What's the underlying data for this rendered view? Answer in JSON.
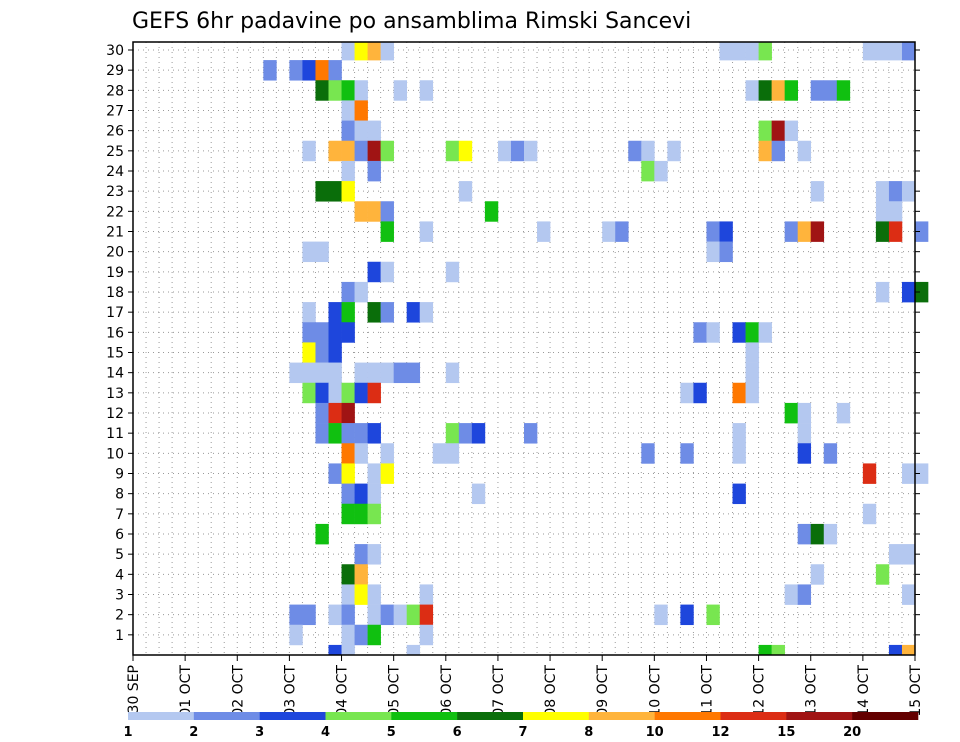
{
  "chart_data": {
    "type": "heatmap",
    "title": "GEFS 6hr padavine po ansamblima Rimski Sancevi",
    "ylabel": "",
    "xlabel": "",
    "x_tick_labels": [
      "30 SEP",
      "01 OCT",
      "02 OCT",
      "03 OCT",
      "04 OCT",
      "05 OCT",
      "06 OCT",
      "07 OCT",
      "08 OCT",
      "09 OCT",
      "10 OCT",
      "11 OCT",
      "12 OCT",
      "13 OCT",
      "14 OCT",
      "15 OCT"
    ],
    "y_tick_labels": [
      "1",
      "2",
      "3",
      "4",
      "5",
      "6",
      "7",
      "8",
      "9",
      "10",
      "11",
      "12",
      "13",
      "14",
      "15",
      "16",
      "17",
      "18",
      "19",
      "20",
      "21",
      "22",
      "23",
      "24",
      "25",
      "26",
      "27",
      "28",
      "29",
      "30"
    ],
    "xlim_days": [
      0,
      15
    ],
    "ylim": [
      0,
      30
    ],
    "grid": true,
    "legend": {
      "placement": "bottom",
      "levels": [
        "1",
        "2",
        "3",
        "4",
        "5",
        "6",
        "7",
        "8",
        "10",
        "12",
        "15",
        "20"
      ],
      "colors": [
        "#b4c8f0",
        "#6e8ce6",
        "#1e46dc",
        "#78e650",
        "#10c010",
        "#0a6e0a",
        "#ffff00",
        "#ffb43c",
        "#ff7800",
        "#dc2d14",
        "#a01414",
        "#640000"
      ]
    },
    "cells": [
      [
        30,
        16,
        0
      ],
      [
        30,
        17,
        6
      ],
      [
        30,
        18,
        7
      ],
      [
        30,
        19,
        0
      ],
      [
        30,
        45,
        0
      ],
      [
        30,
        46,
        0
      ],
      [
        30,
        47,
        0
      ],
      [
        30,
        48,
        3
      ],
      [
        30,
        56,
        0
      ],
      [
        30,
        57,
        0
      ],
      [
        30,
        58,
        0
      ],
      [
        30,
        59,
        1
      ],
      [
        29,
        10,
        1
      ],
      [
        29,
        12,
        1
      ],
      [
        29,
        13,
        2
      ],
      [
        29,
        14,
        8
      ],
      [
        29,
        15,
        1
      ],
      [
        28,
        14,
        5
      ],
      [
        28,
        15,
        3
      ],
      [
        28,
        16,
        4
      ],
      [
        28,
        17,
        0
      ],
      [
        28,
        20,
        0
      ],
      [
        28,
        22,
        0
      ],
      [
        28,
        47,
        0
      ],
      [
        28,
        48,
        5
      ],
      [
        28,
        49,
        7
      ],
      [
        28,
        50,
        4
      ],
      [
        28,
        52,
        1
      ],
      [
        28,
        53,
        1
      ],
      [
        28,
        54,
        4
      ],
      [
        27,
        16,
        0
      ],
      [
        27,
        17,
        8
      ],
      [
        26,
        16,
        1
      ],
      [
        26,
        17,
        0
      ],
      [
        26,
        18,
        0
      ],
      [
        26,
        48,
        3
      ],
      [
        26,
        49,
        10
      ],
      [
        26,
        50,
        0
      ],
      [
        25,
        13,
        0
      ],
      [
        25,
        15,
        7
      ],
      [
        25,
        16,
        7
      ],
      [
        25,
        17,
        1
      ],
      [
        25,
        18,
        10
      ],
      [
        25,
        19,
        3
      ],
      [
        25,
        24,
        3
      ],
      [
        25,
        25,
        6
      ],
      [
        25,
        28,
        0
      ],
      [
        25,
        29,
        1
      ],
      [
        25,
        30,
        0
      ],
      [
        25,
        38,
        1
      ],
      [
        25,
        39,
        0
      ],
      [
        25,
        41,
        0
      ],
      [
        25,
        48,
        7
      ],
      [
        25,
        49,
        1
      ],
      [
        25,
        51,
        0
      ],
      [
        24,
        16,
        0
      ],
      [
        24,
        18,
        1
      ],
      [
        24,
        39,
        3
      ],
      [
        24,
        40,
        0
      ],
      [
        23,
        14,
        5
      ],
      [
        23,
        15,
        5
      ],
      [
        23,
        16,
        6
      ],
      [
        23,
        25,
        0
      ],
      [
        23,
        52,
        0
      ],
      [
        23,
        57,
        0
      ],
      [
        23,
        58,
        1
      ],
      [
        23,
        59,
        0
      ],
      [
        22,
        17,
        7
      ],
      [
        22,
        18,
        7
      ],
      [
        22,
        19,
        1
      ],
      [
        22,
        27,
        4
      ],
      [
        22,
        57,
        0
      ],
      [
        22,
        58,
        0
      ],
      [
        21,
        19,
        4
      ],
      [
        21,
        22,
        0
      ],
      [
        21,
        31,
        0
      ],
      [
        21,
        36,
        0
      ],
      [
        21,
        37,
        1
      ],
      [
        21,
        44,
        1
      ],
      [
        21,
        45,
        2
      ],
      [
        21,
        50,
        1
      ],
      [
        21,
        51,
        7
      ],
      [
        21,
        52,
        10
      ],
      [
        21,
        57,
        5
      ],
      [
        21,
        58,
        9
      ],
      [
        21,
        60,
        1
      ],
      [
        20,
        13,
        0
      ],
      [
        20,
        14,
        0
      ],
      [
        20,
        44,
        0
      ],
      [
        20,
        45,
        1
      ],
      [
        19,
        18,
        2
      ],
      [
        19,
        19,
        0
      ],
      [
        19,
        24,
        0
      ],
      [
        18,
        16,
        1
      ],
      [
        18,
        17,
        0
      ],
      [
        18,
        57,
        0
      ],
      [
        18,
        59,
        2
      ],
      [
        18,
        60,
        5
      ],
      [
        17,
        13,
        0
      ],
      [
        17,
        15,
        2
      ],
      [
        17,
        16,
        4
      ],
      [
        17,
        18,
        5
      ],
      [
        17,
        19,
        1
      ],
      [
        17,
        21,
        2
      ],
      [
        17,
        22,
        0
      ],
      [
        16,
        13,
        1
      ],
      [
        16,
        14,
        1
      ],
      [
        16,
        15,
        2
      ],
      [
        16,
        16,
        2
      ],
      [
        16,
        43,
        1
      ],
      [
        16,
        44,
        0
      ],
      [
        16,
        46,
        2
      ],
      [
        16,
        47,
        4
      ],
      [
        16,
        48,
        0
      ],
      [
        15,
        13,
        6
      ],
      [
        15,
        14,
        1
      ],
      [
        15,
        15,
        2
      ],
      [
        15,
        47,
        0
      ],
      [
        14,
        12,
        0
      ],
      [
        14,
        13,
        0
      ],
      [
        14,
        14,
        0
      ],
      [
        14,
        15,
        0
      ],
      [
        14,
        17,
        0
      ],
      [
        14,
        18,
        0
      ],
      [
        14,
        19,
        0
      ],
      [
        14,
        20,
        1
      ],
      [
        14,
        21,
        1
      ],
      [
        14,
        24,
        0
      ],
      [
        14,
        47,
        0
      ],
      [
        13,
        13,
        3
      ],
      [
        13,
        14,
        2
      ],
      [
        13,
        15,
        0
      ],
      [
        13,
        16,
        3
      ],
      [
        13,
        17,
        2
      ],
      [
        13,
        18,
        9
      ],
      [
        13,
        42,
        0
      ],
      [
        13,
        43,
        2
      ],
      [
        13,
        46,
        8
      ],
      [
        13,
        47,
        0
      ],
      [
        12,
        14,
        1
      ],
      [
        12,
        15,
        9
      ],
      [
        12,
        16,
        10
      ],
      [
        12,
        50,
        4
      ],
      [
        12,
        51,
        0
      ],
      [
        12,
        54,
        0
      ],
      [
        11,
        14,
        1
      ],
      [
        11,
        15,
        4
      ],
      [
        11,
        16,
        1
      ],
      [
        11,
        17,
        1
      ],
      [
        11,
        18,
        2
      ],
      [
        11,
        24,
        3
      ],
      [
        11,
        25,
        1
      ],
      [
        11,
        26,
        2
      ],
      [
        11,
        30,
        1
      ],
      [
        11,
        46,
        0
      ],
      [
        11,
        51,
        0
      ],
      [
        10,
        16,
        8
      ],
      [
        10,
        17,
        0
      ],
      [
        10,
        19,
        0
      ],
      [
        10,
        23,
        0
      ],
      [
        10,
        24,
        0
      ],
      [
        10,
        39,
        1
      ],
      [
        10,
        42,
        1
      ],
      [
        10,
        46,
        0
      ],
      [
        10,
        51,
        2
      ],
      [
        10,
        53,
        1
      ],
      [
        9,
        15,
        1
      ],
      [
        9,
        16,
        6
      ],
      [
        9,
        18,
        0
      ],
      [
        9,
        19,
        6
      ],
      [
        9,
        56,
        9
      ],
      [
        9,
        59,
        0
      ],
      [
        9,
        60,
        0
      ],
      [
        8,
        16,
        1
      ],
      [
        8,
        17,
        2
      ],
      [
        8,
        18,
        0
      ],
      [
        8,
        26,
        0
      ],
      [
        8,
        46,
        2
      ],
      [
        7,
        16,
        4
      ],
      [
        7,
        17,
        4
      ],
      [
        7,
        18,
        3
      ],
      [
        7,
        56,
        0
      ],
      [
        6,
        14,
        4
      ],
      [
        6,
        51,
        1
      ],
      [
        6,
        52,
        5
      ],
      [
        6,
        53,
        0
      ],
      [
        5,
        17,
        1
      ],
      [
        5,
        18,
        0
      ],
      [
        5,
        58,
        0
      ],
      [
        5,
        59,
        0
      ],
      [
        4,
        16,
        5
      ],
      [
        4,
        17,
        7
      ],
      [
        4,
        52,
        0
      ],
      [
        4,
        57,
        3
      ],
      [
        3,
        16,
        0
      ],
      [
        3,
        17,
        6
      ],
      [
        3,
        18,
        0
      ],
      [
        3,
        22,
        0
      ],
      [
        3,
        50,
        0
      ],
      [
        3,
        51,
        1
      ],
      [
        3,
        59,
        0
      ],
      [
        2,
        12,
        1
      ],
      [
        2,
        13,
        1
      ],
      [
        2,
        15,
        0
      ],
      [
        2,
        16,
        1
      ],
      [
        2,
        18,
        0
      ],
      [
        2,
        19,
        1
      ],
      [
        2,
        20,
        0
      ],
      [
        2,
        21,
        3
      ],
      [
        2,
        22,
        9
      ],
      [
        2,
        40,
        0
      ],
      [
        2,
        42,
        2
      ],
      [
        2,
        44,
        3
      ],
      [
        1,
        12,
        0
      ],
      [
        1,
        16,
        0
      ],
      [
        1,
        17,
        1
      ],
      [
        1,
        18,
        4
      ],
      [
        1,
        22,
        0
      ],
      [
        0,
        15,
        2
      ],
      [
        0,
        16,
        0
      ],
      [
        0,
        21,
        0
      ],
      [
        0,
        48,
        4
      ],
      [
        0,
        49,
        3
      ],
      [
        0,
        58,
        2
      ],
      [
        0,
        59,
        7
      ]
    ]
  }
}
